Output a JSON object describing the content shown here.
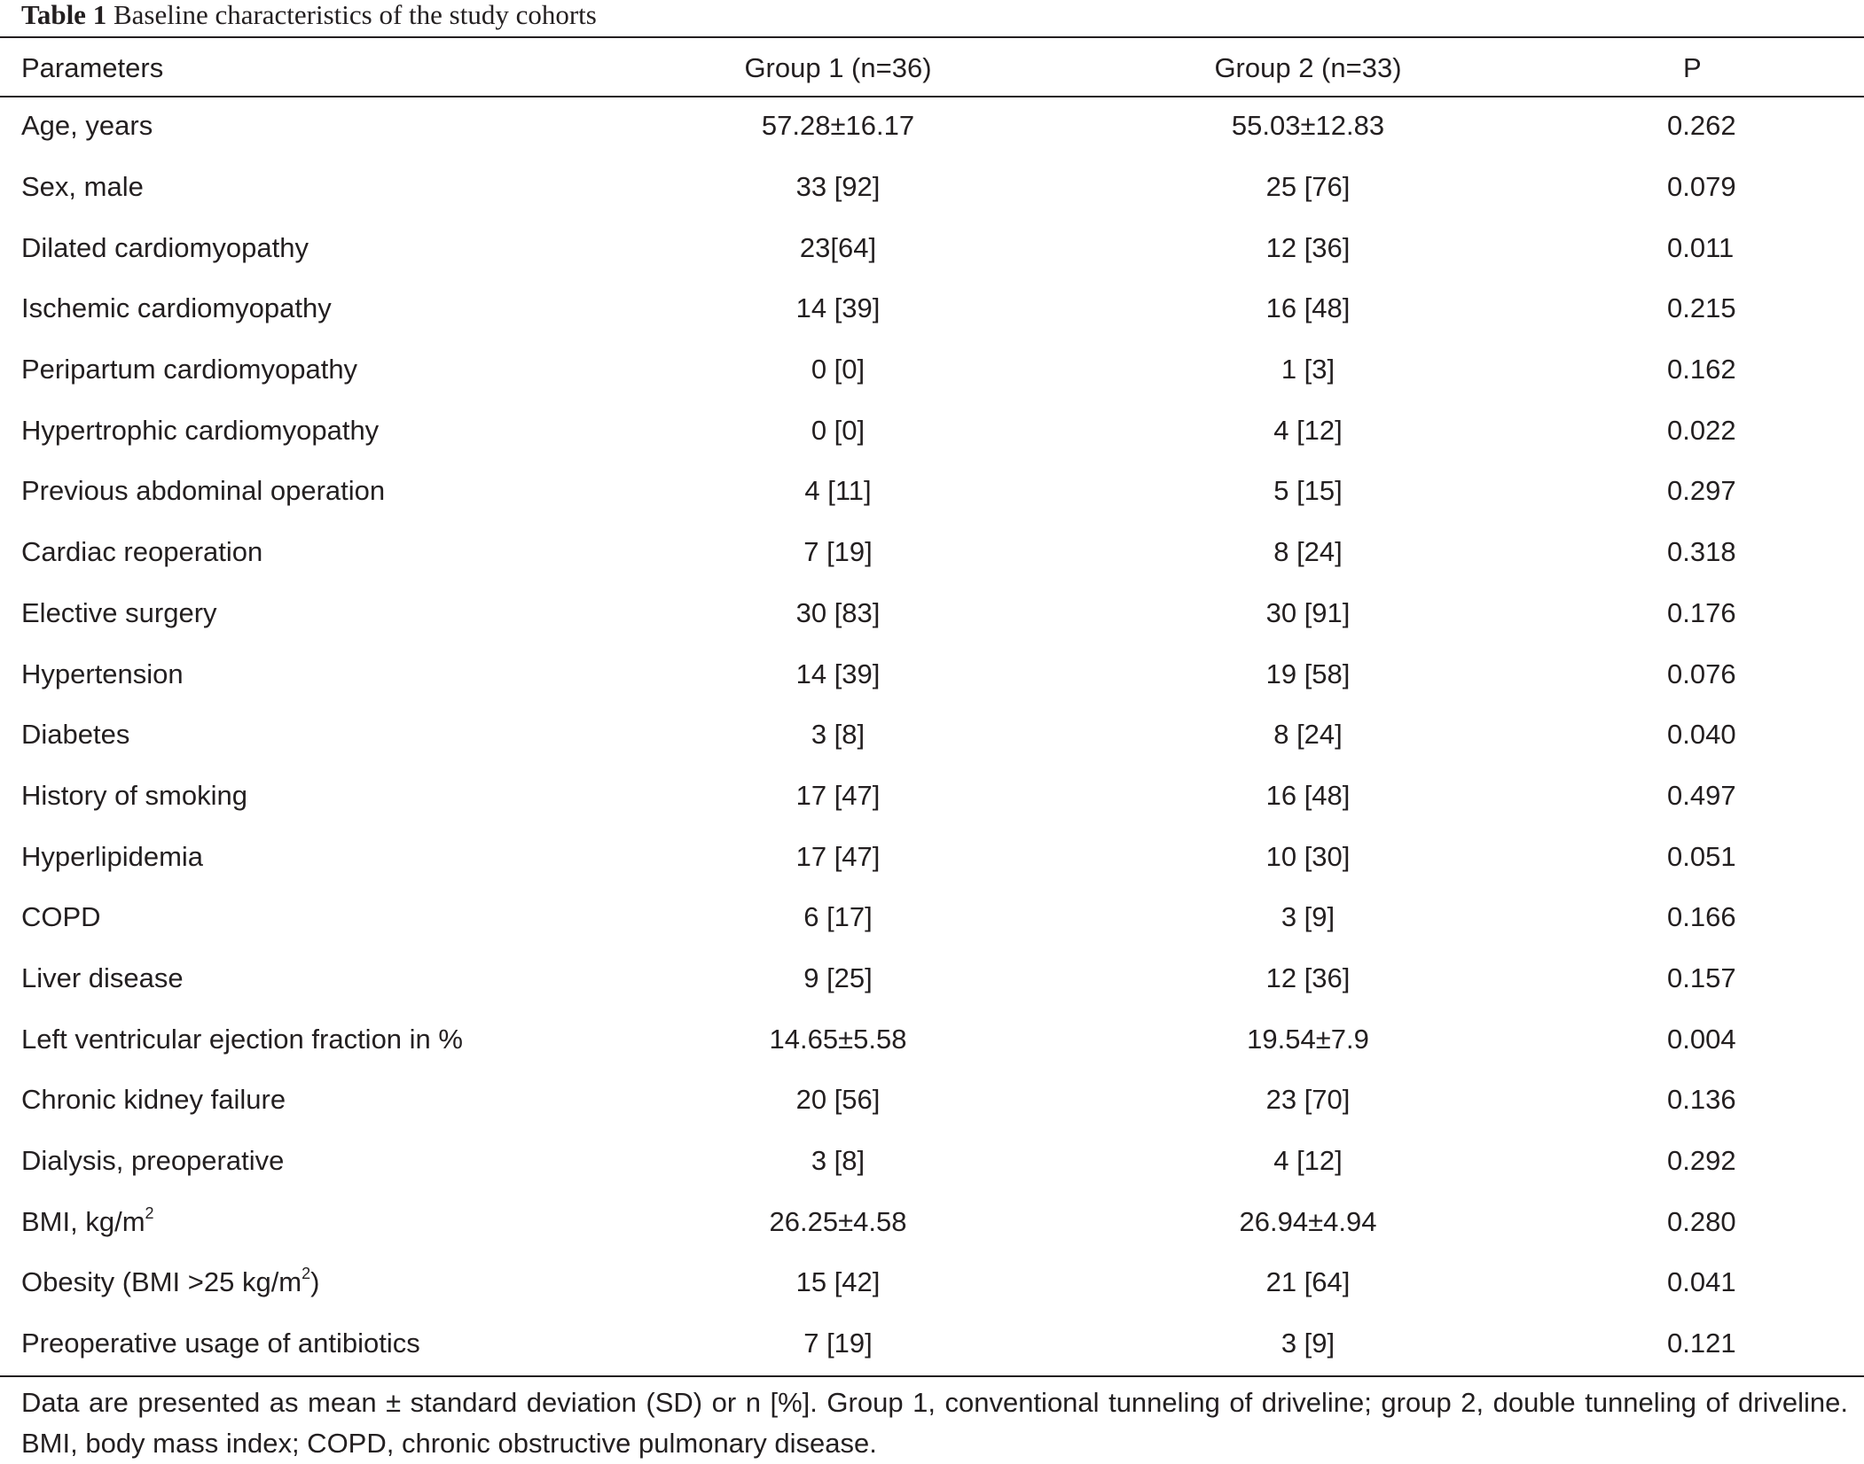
{
  "caption": {
    "label": "Table 1",
    "text": "Baseline characteristics of the study cohorts"
  },
  "table": {
    "headers": {
      "parameters": "Parameters",
      "group1": "Group 1 (n=36)",
      "group2": "Group 2 (n=33)",
      "p": "P"
    },
    "rows": [
      {
        "parameter": "Age, years",
        "group1": "57.28±16.17",
        "group2": "55.03±12.83",
        "p": "0.262"
      },
      {
        "parameter": "Sex, male",
        "group1": "33 [92]",
        "group2": "25 [76]",
        "p": "0.079"
      },
      {
        "parameter": "Dilated cardiomyopathy",
        "group1": "23[64]",
        "group2": "12 [36]",
        "p": "0.011"
      },
      {
        "parameter": "Ischemic cardiomyopathy",
        "group1": "14 [39]",
        "group2": "16 [48]",
        "p": "0.215"
      },
      {
        "parameter": "Peripartum cardiomyopathy",
        "group1": "0 [0]",
        "group2": "1 [3]",
        "p": "0.162"
      },
      {
        "parameter": "Hypertrophic cardiomyopathy",
        "group1": "0 [0]",
        "group2": "4 [12]",
        "p": "0.022"
      },
      {
        "parameter": "Previous abdominal operation",
        "group1": "4 [11]",
        "group2": "5 [15]",
        "p": "0.297"
      },
      {
        "parameter": "Cardiac reoperation",
        "group1": "7 [19]",
        "group2": "8 [24]",
        "p": "0.318"
      },
      {
        "parameter": "Elective surgery",
        "group1": "30 [83]",
        "group2": "30 [91]",
        "p": "0.176"
      },
      {
        "parameter": "Hypertension",
        "group1": "14 [39]",
        "group2": "19 [58]",
        "p": "0.076"
      },
      {
        "parameter": "Diabetes",
        "group1": "3 [8]",
        "group2": "8 [24]",
        "p": "0.040"
      },
      {
        "parameter": "History of smoking",
        "group1": "17 [47]",
        "group2": "16 [48]",
        "p": "0.497"
      },
      {
        "parameter": "Hyperlipidemia",
        "group1": "17 [47]",
        "group2": "10 [30]",
        "p": "0.051"
      },
      {
        "parameter": "COPD",
        "group1": "6 [17]",
        "group2": "3 [9]",
        "p": "0.166"
      },
      {
        "parameter": "Liver disease",
        "group1": "9 [25]",
        "group2": "12 [36]",
        "p": "0.157"
      },
      {
        "parameter": "Left ventricular ejection fraction in %",
        "group1": "14.65±5.58",
        "group2": "19.54±7.9",
        "p": "0.004"
      },
      {
        "parameter": "Chronic kidney failure",
        "group1": "20 [56]",
        "group2": "23 [70]",
        "p": "0.136"
      },
      {
        "parameter": "Dialysis, preoperative",
        "group1": "3 [8]",
        "group2": "4 [12]",
        "p": "0.292"
      },
      {
        "parameter": "BMI, kg/m",
        "parameter_sup": "2",
        "group1": "26.25±4.58",
        "group2": "26.94±4.94",
        "p": "0.280"
      },
      {
        "parameter": "Obesity (BMI >25 kg/m",
        "parameter_sup": "2",
        "parameter_after": ")",
        "group1": "15 [42]",
        "group2": "21 [64]",
        "p": "0.041"
      },
      {
        "parameter": "Preoperative usage of antibiotics",
        "group1": "7 [19]",
        "group2": "3 [9]",
        "p": "0.121"
      }
    ]
  },
  "footnote": "Data are presented as mean ± standard deviation (SD) or n [%]. Group 1, conventional tunneling of driveline; group 2, double tunneling of driveline. BMI, body mass index; COPD, chronic obstructive pulmonary disease."
}
